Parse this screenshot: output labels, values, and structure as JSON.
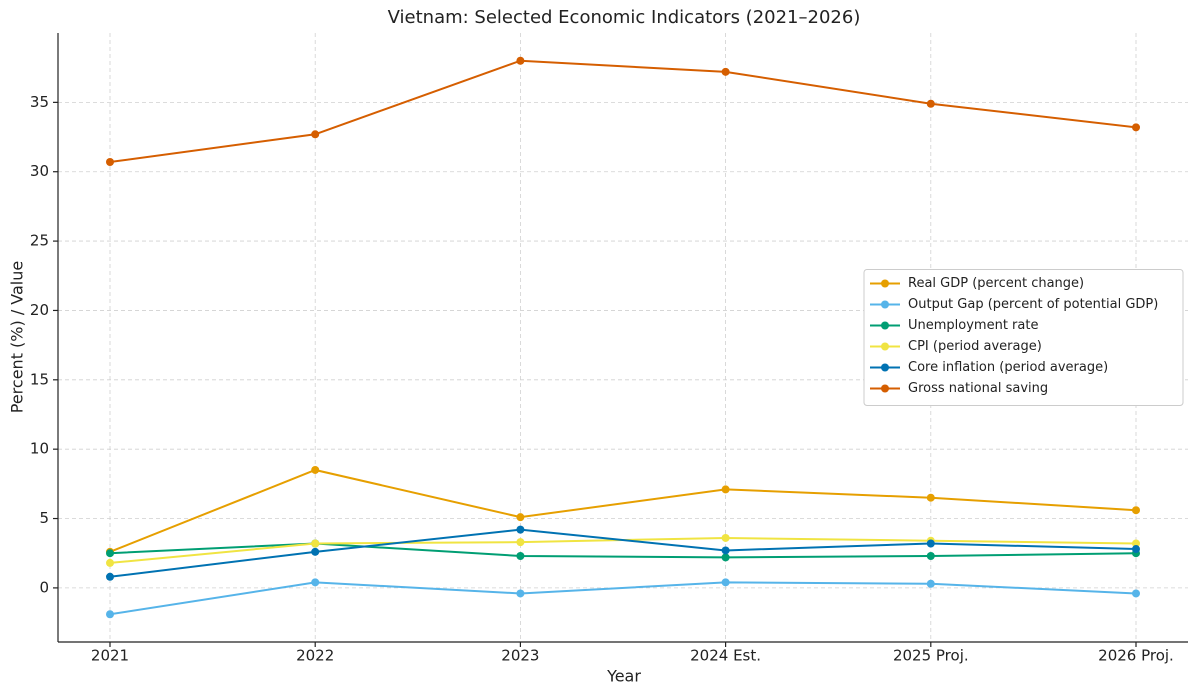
{
  "chart_data": {
    "type": "line",
    "title": "Vietnam: Selected Economic Indicators (2021–2026)",
    "x_label": "Year",
    "y_label": "Percent (%) / Value",
    "categories": [
      "2021",
      "2022",
      "2023",
      "2024 Est.",
      "2025 Proj.",
      "2026 Proj."
    ],
    "series": [
      {
        "name": "Real GDP (percent change)",
        "color": "#E69F00",
        "values": [
          2.6,
          8.5,
          5.1,
          7.1,
          6.5,
          5.6
        ]
      },
      {
        "name": "Output Gap (percent of potential GDP)",
        "color": "#56B4E9",
        "values": [
          -1.9,
          0.4,
          -0.4,
          0.4,
          0.3,
          -0.4
        ]
      },
      {
        "name": "Unemployment rate",
        "color": "#009E73",
        "values": [
          2.5,
          3.2,
          2.3,
          2.2,
          2.3,
          2.5
        ]
      },
      {
        "name": "CPI (period average)",
        "color": "#F0E442",
        "values": [
          1.8,
          3.2,
          3.3,
          3.6,
          3.4,
          3.2
        ]
      },
      {
        "name": "Core inflation (period average)",
        "color": "#0072B2",
        "values": [
          0.8,
          2.6,
          4.2,
          2.7,
          3.2,
          2.8
        ]
      },
      {
        "name": "Gross national saving",
        "color": "#D55E00",
        "values": [
          30.7,
          32.7,
          38.0,
          37.2,
          34.9,
          33.2
        ]
      }
    ],
    "ylim": [
      -3.9,
      40
    ],
    "yticks": [
      0,
      5,
      10,
      15,
      20,
      25,
      30,
      35
    ],
    "grid": true,
    "legend": "center right"
  }
}
